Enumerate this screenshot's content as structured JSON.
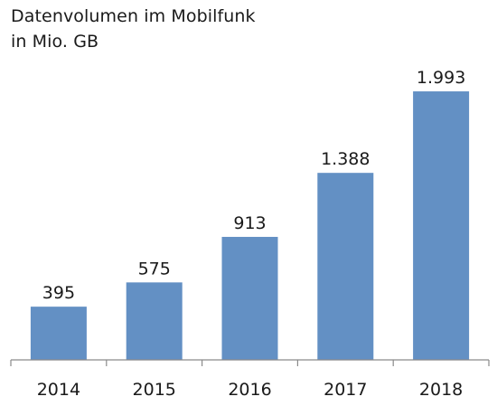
{
  "chart_data": {
    "type": "bar",
    "title": "Datenvolumen im Mobilfunk",
    "subtitle": "in Mio. GB",
    "categories": [
      "2014",
      "2015",
      "2016",
      "2017",
      "2018"
    ],
    "values": [
      395,
      575,
      913,
      1388,
      1993
    ],
    "value_labels": [
      "395",
      "575",
      "913",
      "1.388",
      "1.993"
    ],
    "ylim": [
      0,
      2000
    ],
    "grid": false,
    "bar_color": "#6390c4",
    "axis_color": "#8a8a8a"
  }
}
